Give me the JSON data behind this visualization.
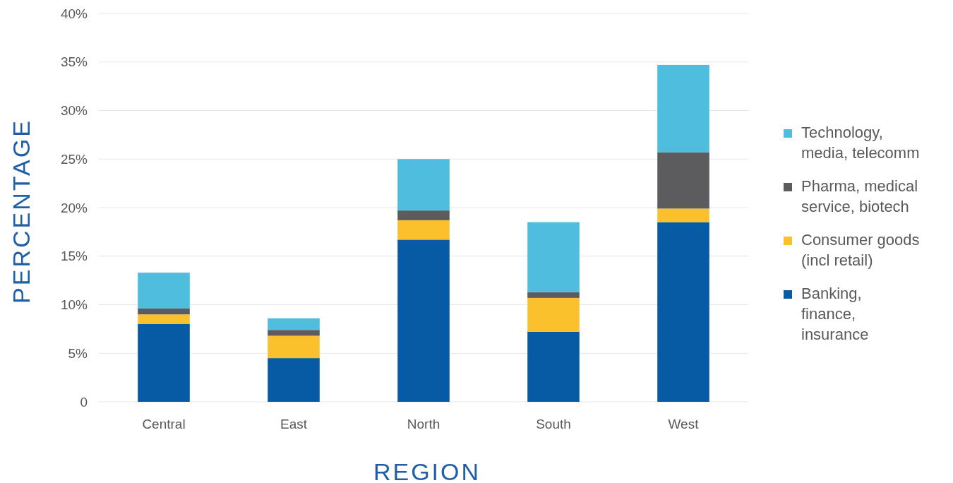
{
  "chart_data": {
    "type": "bar",
    "stacked": true,
    "xlabel": "REGION",
    "ylabel": "PERCENTAGE",
    "categories": [
      "Central",
      "East",
      "North",
      "South",
      "West"
    ],
    "series": [
      {
        "name": "Banking, finance, insurance",
        "color": "#065ba4",
        "values": [
          8.0,
          4.5,
          16.7,
          7.2,
          18.5
        ]
      },
      {
        "name": "Consumer goods (incl retail)",
        "color": "#fac12c",
        "values": [
          1.0,
          2.3,
          2.0,
          3.5,
          1.4
        ]
      },
      {
        "name": "Pharma, medical service, biotech",
        "color": "#5c5c5e",
        "values": [
          0.6,
          0.6,
          1.0,
          0.6,
          5.8
        ]
      },
      {
        "name": "Technology, media, telecomm",
        "color": "#4fbddd",
        "values": [
          3.7,
          1.2,
          5.3,
          7.2,
          9.0
        ]
      }
    ],
    "ylim": [
      0,
      40
    ],
    "yticks": [
      0,
      {
        "value": 5,
        "label": "5%"
      },
      {
        "value": 10,
        "label": "10%"
      },
      {
        "value": 15,
        "label": "15%"
      },
      {
        "value": 20,
        "label": "20%"
      },
      {
        "value": 25,
        "label": "25%"
      },
      {
        "value": 30,
        "label": "30%"
      },
      {
        "value": 35,
        "label": "35%"
      },
      {
        "value": 40,
        "label": "40%"
      }
    ],
    "grid": "y",
    "legend": "right"
  }
}
